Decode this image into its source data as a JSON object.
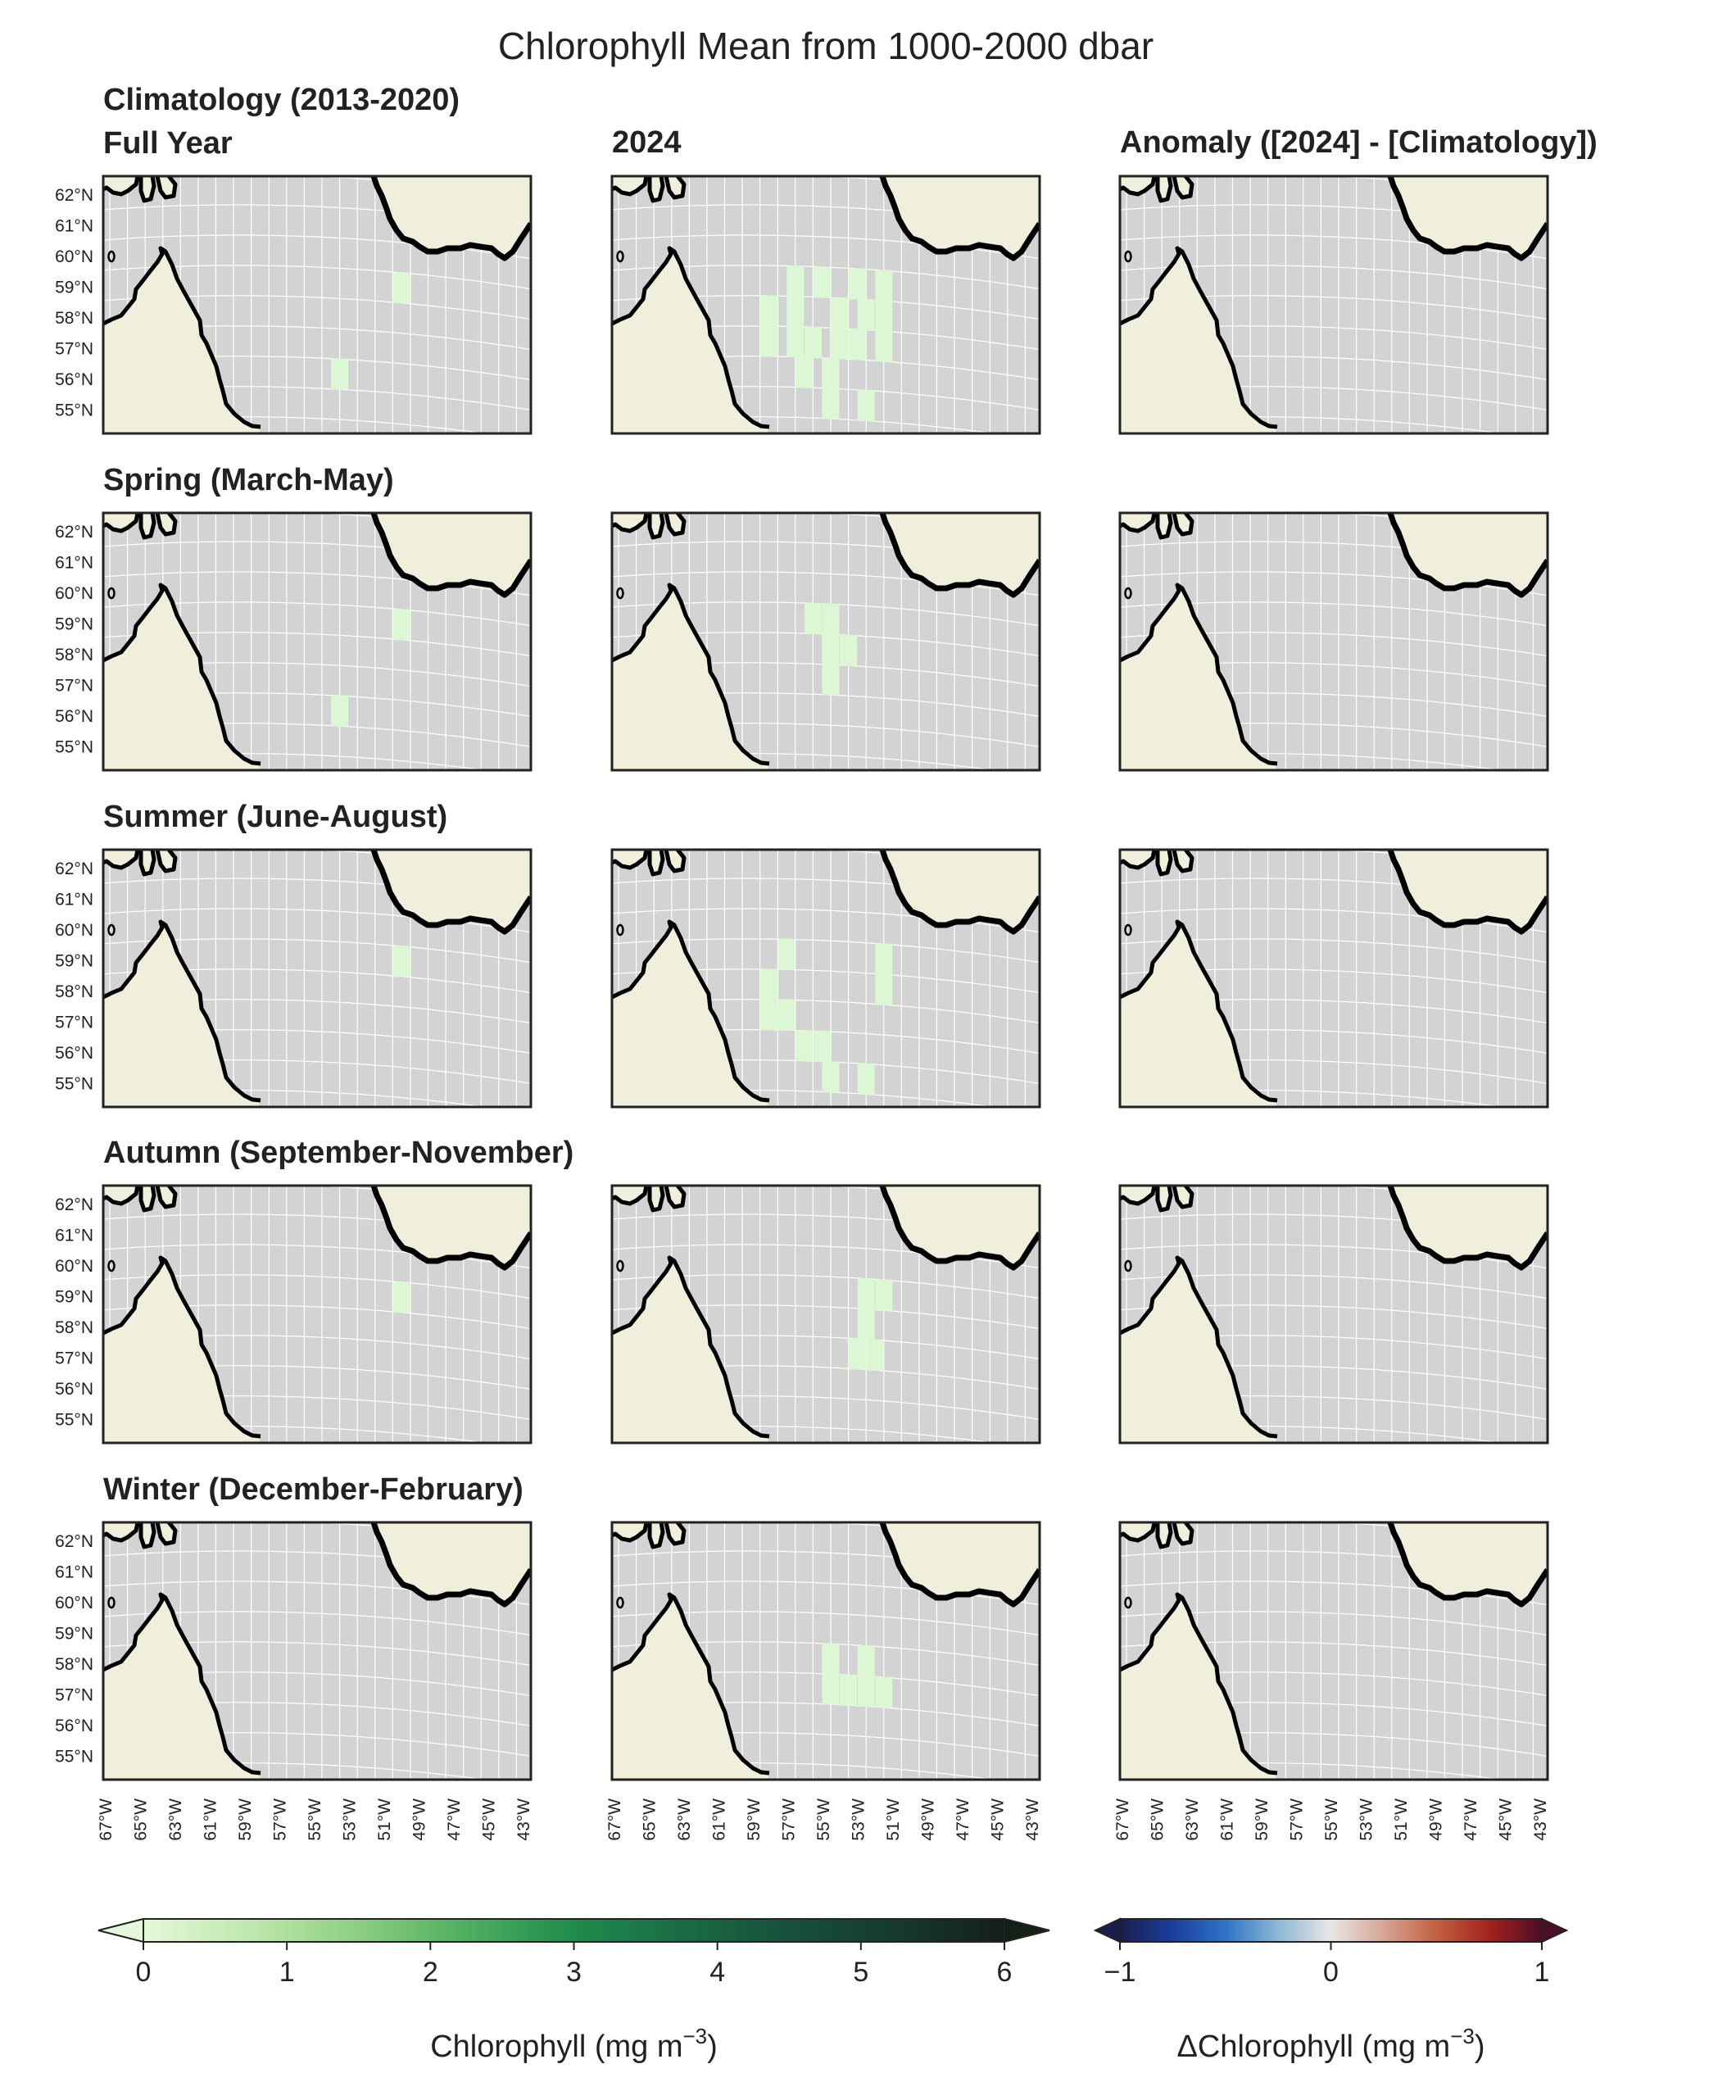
{
  "chart_data": {
    "type": "heatmap",
    "title": "Chlorophyll Mean from 1000-2000 dbar",
    "column_titles": [
      "2024",
      "Anomaly ([2024] - [Climatology])"
    ],
    "climatology_label": "Climatology (2013-2020)",
    "rows": [
      {
        "label": "Full Year",
        "clim_cells": [
          [
            -50.5,
            58.5
          ],
          [
            -54.0,
            55.5
          ]
        ],
        "year_cells": [
          [
            -57.0,
            58.5
          ],
          [
            -55.5,
            58.5
          ],
          [
            -53.5,
            58.5
          ],
          [
            -52.0,
            58.5
          ],
          [
            -58.5,
            57.5
          ],
          [
            -57.0,
            57.5
          ],
          [
            -54.5,
            57.5
          ],
          [
            -53.0,
            57.5
          ],
          [
            -52.0,
            57.5
          ],
          [
            -58.5,
            56.5
          ],
          [
            -57.0,
            56.5
          ],
          [
            -56.0,
            56.5
          ],
          [
            -54.5,
            56.5
          ],
          [
            -53.5,
            56.5
          ],
          [
            -52.0,
            56.5
          ],
          [
            -56.5,
            55.5
          ],
          [
            -55.0,
            55.5
          ],
          [
            -55.0,
            54.5
          ],
          [
            -53.0,
            54.5
          ]
        ]
      },
      {
        "label": "Spring (March-May)",
        "clim_cells": [
          [
            -50.5,
            58.5
          ],
          [
            -54.0,
            55.5
          ]
        ],
        "year_cells": [
          [
            -56.0,
            58.5
          ],
          [
            -55.0,
            58.5
          ],
          [
            -55.0,
            57.5
          ],
          [
            -54.0,
            57.5
          ],
          [
            -55.0,
            56.5
          ]
        ]
      },
      {
        "label": "Summer (June-August)",
        "clim_cells": [
          [
            -50.5,
            58.5
          ]
        ],
        "year_cells": [
          [
            -57.5,
            58.5
          ],
          [
            -52.0,
            58.5
          ],
          [
            -58.5,
            57.5
          ],
          [
            -52.0,
            57.5
          ],
          [
            -58.5,
            56.5
          ],
          [
            -57.5,
            56.5
          ],
          [
            -56.5,
            55.5
          ],
          [
            -55.5,
            55.5
          ],
          [
            -55.0,
            54.5
          ],
          [
            -53.0,
            54.5
          ]
        ]
      },
      {
        "label": "Autumn (September-November)",
        "clim_cells": [
          [
            -50.5,
            58.5
          ]
        ],
        "year_cells": [
          [
            -53.0,
            58.5
          ],
          [
            -52.0,
            58.5
          ],
          [
            -53.0,
            57.5
          ],
          [
            -53.5,
            56.5
          ],
          [
            -52.5,
            56.5
          ]
        ]
      },
      {
        "label": "Winter (December-February)",
        "clim_cells": [],
        "year_cells": [
          [
            -55.0,
            57.5
          ],
          [
            -53.0,
            57.5
          ],
          [
            -55.0,
            56.5
          ],
          [
            -54.0,
            56.5
          ],
          [
            -53.0,
            56.5
          ],
          [
            -52.0,
            56.5
          ]
        ]
      }
    ],
    "cell_value": 0.1,
    "lon_ticks": [
      "67°W",
      "65°W",
      "63°W",
      "61°W",
      "59°W",
      "57°W",
      "55°W",
      "53°W",
      "51°W",
      "49°W",
      "47°W",
      "45°W",
      "43°W"
    ],
    "lat_ticks": [
      "62°N",
      "61°N",
      "60°N",
      "59°N",
      "58°N",
      "57°N",
      "56°N",
      "55°N"
    ],
    "xlim": [
      -67,
      -43
    ],
    "ylim": [
      54,
      62.5
    ],
    "colorbars": [
      {
        "label": "Chlorophyll (mg m",
        "label_sup": "−3",
        "label_end": ")",
        "vmin": 0,
        "vmax": 6,
        "ticks": [
          "0",
          "1",
          "2",
          "3",
          "4",
          "5",
          "6"
        ],
        "colors": [
          "#e3f8d8",
          "#bfe7ad",
          "#8cce82",
          "#4fae61",
          "#1f8b4c",
          "#1a6b45",
          "#17503b",
          "#16392e",
          "#141f18"
        ]
      },
      {
        "label": "ΔChlorophyll (mg m",
        "label_sup": "−3",
        "label_end": ")",
        "vmin": -1,
        "vmax": 1,
        "ticks": [
          "−1",
          "0",
          "1"
        ],
        "colors": [
          "#1a1e4e",
          "#1a3e9c",
          "#2e74c8",
          "#8db7d4",
          "#e8e6e6",
          "#d7a597",
          "#c26040",
          "#a3231f",
          "#4d0d26"
        ]
      }
    ],
    "colors": {
      "ocean": "#d3d3d3",
      "land": "#efefdc",
      "coast": "#000000",
      "grid": "#ffffff",
      "data": "#dcf7d3"
    }
  }
}
